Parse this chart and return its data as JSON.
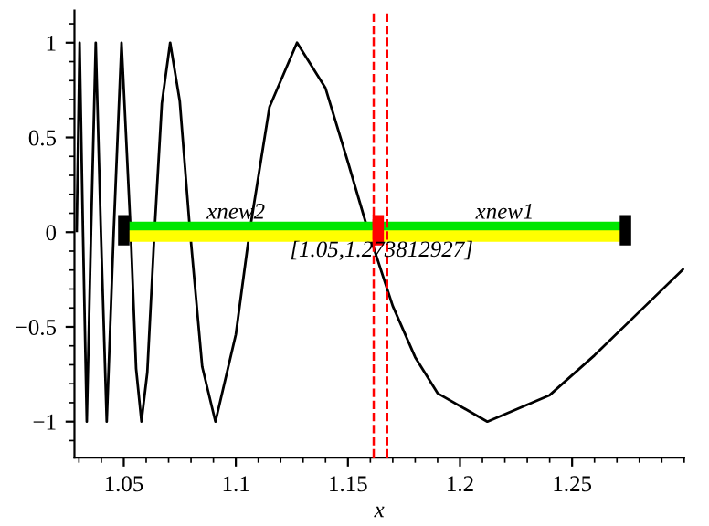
{
  "chart_data": {
    "type": "line",
    "xlabel": "x",
    "xlim": [
      1.028,
      1.3
    ],
    "ylim": [
      -1.19,
      1.17
    ],
    "xticks": [
      1.05,
      1.1,
      1.15,
      1.2,
      1.25
    ],
    "yticks": [
      -1,
      -0.5,
      0,
      0.5,
      1
    ],
    "grid": false,
    "legend": false,
    "marker": "none",
    "line_style": "solid",
    "series": [
      {
        "color": "#000000",
        "x": [
          1.029,
          1.0303,
          1.0318,
          1.0335,
          1.0354,
          1.0375,
          1.0398,
          1.0424,
          1.0455,
          1.049,
          1.0531,
          1.0555,
          1.0579,
          1.0605,
          1.0637,
          1.067,
          1.0707,
          1.075,
          1.0796,
          1.085,
          1.0909,
          1.1,
          1.1061,
          1.115,
          1.1273,
          1.14,
          1.15,
          1.1592,
          1.17,
          1.18,
          1.19,
          1.2122,
          1.24,
          1.26,
          1.28,
          1.3
        ],
        "values": [
          0,
          1,
          0,
          -1,
          0,
          1,
          0,
          -1,
          0,
          1,
          0,
          -0.72,
          -1,
          -0.74,
          0,
          0.68,
          1,
          0.69,
          0,
          -0.71,
          -1,
          -0.54,
          0,
          0.66,
          1,
          0.76,
          0.37,
          0,
          -0.39,
          -0.66,
          -0.85,
          -1,
          -0.86,
          -0.65,
          -0.42,
          -0.19
        ]
      },
      {
        "color": "#00e600",
        "x": [
          1.05,
          1.2738
        ],
        "values": [
          0.025,
          0.025
        ]
      },
      {
        "color": "#ffff00",
        "x": [
          1.05,
          1.2738
        ],
        "values": [
          -0.02,
          -0.02
        ]
      },
      {
        "color": "#000000",
        "x": [
          1.05,
          1.05
        ],
        "values": [
          -0.07,
          0.09
        ]
      },
      {
        "color": "#000000",
        "x": [
          1.2738,
          1.2738
        ],
        "values": [
          -0.07,
          0.09
        ]
      },
      {
        "color": "#ff0000",
        "x": [
          1.1635,
          1.1635
        ],
        "values": [
          -0.07,
          0.09
        ]
      }
    ],
    "ref_lines": [
      {
        "axis": "x",
        "value": 1.1615,
        "color": "#ff0000",
        "line_style": "dashed"
      },
      {
        "axis": "x",
        "value": 1.1675,
        "color": "#ff0000",
        "line_style": "dashed"
      }
    ],
    "annotations": [
      {
        "text": "xnew2",
        "x": 1.1,
        "y": 0.1
      },
      {
        "text": "xnew1",
        "x": 1.22,
        "y": 0.1
      },
      {
        "text": "[1.05,1.273812927]",
        "x": 1.165,
        "y": -0.1
      }
    ]
  }
}
